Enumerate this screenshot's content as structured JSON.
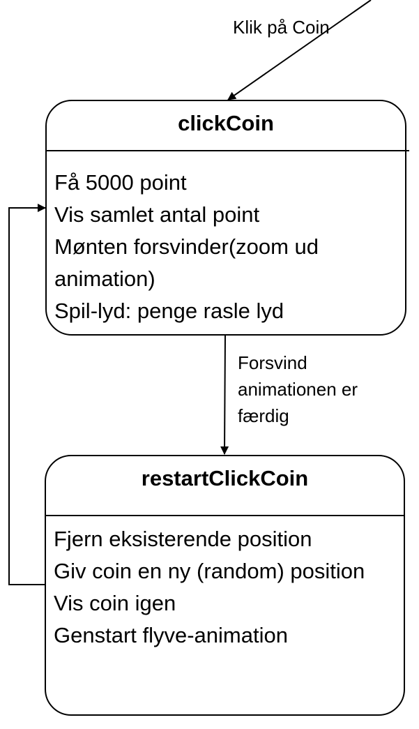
{
  "states": [
    {
      "title": "clickCoin",
      "actions": [
        "Få 5000 point",
        "Vis samlet antal point",
        "Mønten forsvinder(zoom ud animation)",
        "Spil-lyd: penge rasle lyd"
      ]
    },
    {
      "title": "restartClickCoin",
      "actions": [
        "Fjern eksisterende position",
        "Giv coin en ny (random) position",
        "Vis coin  igen",
        "Genstart flyve-animation"
      ]
    }
  ],
  "transitions": {
    "entry": "Klik på Coin",
    "clickcoin_to_restart": [
      "Forsvind",
      "animationen er",
      "færdig"
    ]
  }
}
